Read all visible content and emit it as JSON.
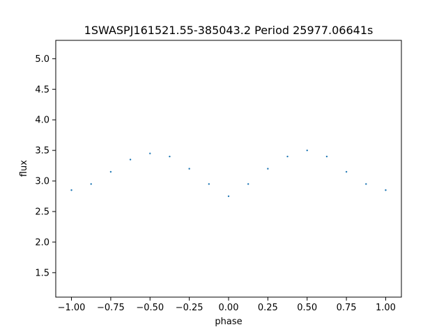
{
  "chart_data": {
    "type": "scatter",
    "title": "1SWASPJ161521.55-385043.2 Period 25977.06641s",
    "xlabel": "phase",
    "ylabel": "flux",
    "xlim": [
      -1.1,
      1.1
    ],
    "ylim": [
      1.1,
      5.3
    ],
    "x_ticks": [
      -1.0,
      -0.75,
      -0.5,
      -0.25,
      0.0,
      0.25,
      0.5,
      0.75,
      1.0
    ],
    "x_tick_labels": [
      "−1.00",
      "−0.75",
      "−0.50",
      "−0.25",
      "0.00",
      "0.25",
      "0.50",
      "0.75",
      "1.00"
    ],
    "y_ticks": [
      1.5,
      2.0,
      2.5,
      3.0,
      3.5,
      4.0,
      4.5,
      5.0
    ],
    "y_tick_labels": [
      "1.5",
      "2.0",
      "2.5",
      "3.0",
      "3.5",
      "4.0",
      "4.5",
      "5.0"
    ],
    "grid": false,
    "point_color": "#1f77b4",
    "series": [
      {
        "x": [
          -1.0,
          -0.875,
          -0.75,
          -0.625,
          -0.5,
          -0.375,
          -0.25,
          -0.125,
          0.0,
          0.125,
          0.25,
          0.375,
          0.5,
          0.625,
          0.75,
          0.875,
          1.0
        ],
        "y": [
          2.85,
          2.95,
          3.15,
          3.35,
          3.45,
          3.4,
          3.2,
          2.95,
          2.75,
          2.95,
          3.2,
          3.4,
          3.5,
          3.4,
          3.15,
          2.95,
          2.85
        ]
      }
    ]
  }
}
